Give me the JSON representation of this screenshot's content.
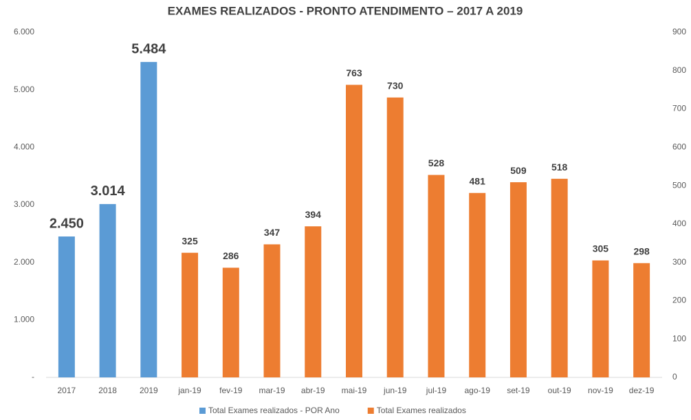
{
  "chart_data": {
    "type": "bar",
    "title": "EXAMES REALIZADOS - PRONTO ATENDIMENTO – 2017 A 2019",
    "categories": [
      "2017",
      "2018",
      "2019",
      "jan-19",
      "fev-19",
      "mar-19",
      "abr-19",
      "mai-19",
      "jun-19",
      "jul-19",
      "ago-19",
      "set-19",
      "out-19",
      "nov-19",
      "dez-19"
    ],
    "series": [
      {
        "name": "Total Exames realizados - POR Ano",
        "color": "#5b9bd5",
        "axis": "y",
        "values": [
          2450,
          3014,
          5484,
          null,
          null,
          null,
          null,
          null,
          null,
          null,
          null,
          null,
          null,
          null,
          null
        ],
        "value_labels": [
          "2.450",
          "3.014",
          "5.484",
          null,
          null,
          null,
          null,
          null,
          null,
          null,
          null,
          null,
          null,
          null,
          null
        ]
      },
      {
        "name": "Total Exames realizados",
        "color": "#ed7d31",
        "axis": "y2",
        "values": [
          null,
          null,
          null,
          325,
          286,
          347,
          394,
          763,
          730,
          528,
          481,
          509,
          518,
          305,
          298
        ]
      }
    ],
    "ylim": [
      0,
      6000
    ],
    "yticks": [
      {
        "value": 0,
        "label": "-"
      },
      {
        "value": 1000,
        "label": "1.000"
      },
      {
        "value": 2000,
        "label": "2.000"
      },
      {
        "value": 3000,
        "label": "3.000"
      },
      {
        "value": 4000,
        "label": "4.000"
      },
      {
        "value": 5000,
        "label": "5.000"
      },
      {
        "value": 6000,
        "label": "6.000"
      }
    ],
    "y2lim": [
      0,
      900
    ],
    "y2ticks": [
      0,
      100,
      200,
      300,
      400,
      500,
      600,
      700,
      800,
      900
    ],
    "grid": false,
    "legend": "bottom"
  }
}
